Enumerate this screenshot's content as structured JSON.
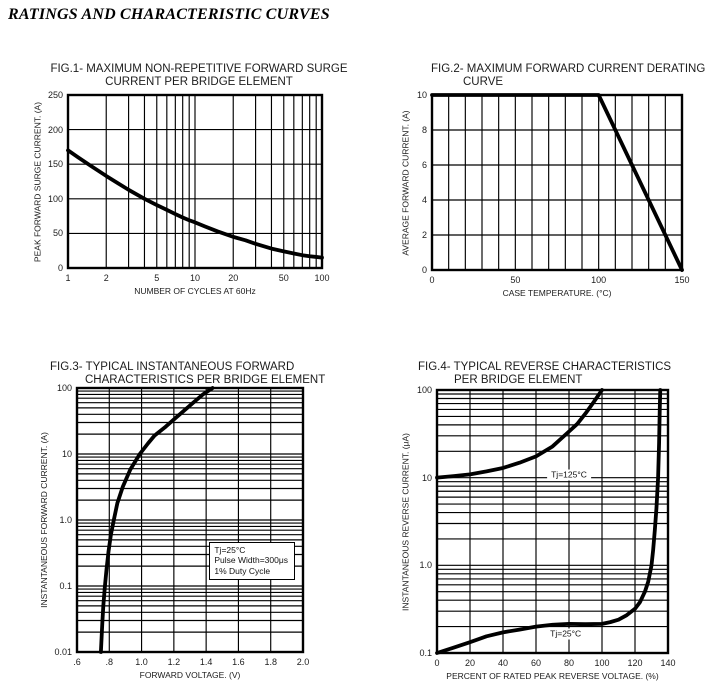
{
  "page": {
    "title": "RATINGS AND CHARACTERISTIC CURVES"
  },
  "chart_data": [
    {
      "fig": "fig1",
      "type": "line",
      "title_lines": [
        "FIG.1- MAXIMUM NON-REPETITIVE FORWARD SURGE",
        "CURRENT PER BRIDGE ELEMENT"
      ],
      "x_axis": {
        "type": "log",
        "min": 1,
        "max": 100,
        "label": "NUMBER OF CYCLES AT 60Hz",
        "ticks": [
          {
            "v": 1,
            "t": "1"
          },
          {
            "v": 2,
            "t": "2"
          },
          {
            "v": 5,
            "t": "5"
          },
          {
            "v": 10,
            "t": "10"
          },
          {
            "v": 20,
            "t": "20"
          },
          {
            "v": 50,
            "t": "50"
          },
          {
            "v": 100,
            "t": "100"
          }
        ]
      },
      "y_axis": {
        "type": "linear",
        "min": 0,
        "max": 250,
        "grid_step": 50,
        "label": "PEAK FORWARD SURGE CURRENT. (A)",
        "ticks": [
          {
            "v": 250,
            "t": "250"
          },
          {
            "v": 200,
            "t": "200"
          },
          {
            "v": 150,
            "t": "150"
          },
          {
            "v": 100,
            "t": "100"
          },
          {
            "v": 50,
            "t": "50"
          },
          {
            "v": 0,
            "t": "0"
          }
        ]
      },
      "series": [
        {
          "name": "surge-current",
          "points": [
            [
              1,
              170
            ],
            [
              1.2,
              160
            ],
            [
              1.5,
              148
            ],
            [
              2,
              133
            ],
            [
              2.5,
              122
            ],
            [
              3,
              113
            ],
            [
              4,
              100
            ],
            [
              5,
              91
            ],
            [
              6,
              84
            ],
            [
              7,
              78
            ],
            [
              8,
              73
            ],
            [
              9,
              69
            ],
            [
              10,
              66
            ],
            [
              12,
              60
            ],
            [
              15,
              53
            ],
            [
              20,
              45
            ],
            [
              25,
              40
            ],
            [
              30,
              35
            ],
            [
              40,
              28
            ],
            [
              50,
              24
            ],
            [
              60,
              21
            ],
            [
              70,
              18.5
            ],
            [
              80,
              17
            ],
            [
              90,
              16
            ],
            [
              100,
              15
            ]
          ]
        }
      ],
      "annotations": []
    },
    {
      "fig": "fig2",
      "type": "line",
      "title_lines": [
        "FIG.2- MAXIMUM FORWARD CURRENT DERATING",
        "CURVE"
      ],
      "x_axis": {
        "type": "linear",
        "min": 0,
        "max": 150,
        "grid_step": 10,
        "label": "CASE TEMPERATURE. (°C)",
        "ticks": [
          {
            "v": 0,
            "t": "0"
          },
          {
            "v": 50,
            "t": "50"
          },
          {
            "v": 100,
            "t": "100"
          },
          {
            "v": 150,
            "t": "150"
          }
        ]
      },
      "y_axis": {
        "type": "linear",
        "min": 0,
        "max": 10,
        "grid_step": 2,
        "label": "AVERAGE FORWARD CURRENT. (A)",
        "ticks": [
          {
            "v": 10,
            "t": "10"
          },
          {
            "v": 8,
            "t": "8"
          },
          {
            "v": 6,
            "t": "6"
          },
          {
            "v": 4,
            "t": "4"
          },
          {
            "v": 2,
            "t": "2"
          },
          {
            "v": 0,
            "t": "0"
          }
        ]
      },
      "series": [
        {
          "name": "derating",
          "points": [
            [
              0,
              10
            ],
            [
              100,
              10
            ],
            [
              150,
              0
            ]
          ]
        }
      ],
      "annotations": []
    },
    {
      "fig": "fig3",
      "type": "line",
      "title_lines": [
        "FIG.3- TYPICAL INSTANTANEOUS FORWARD",
        "CHARACTERISTICS PER BRIDGE ELEMENT"
      ],
      "x_axis": {
        "type": "linear",
        "min": 0.6,
        "max": 2.0,
        "grid_step": 0.2,
        "label": "FORWARD VOLTAGE. (V)",
        "ticks": [
          {
            "v": 0.6,
            "t": ".6"
          },
          {
            "v": 0.8,
            "t": ".8"
          },
          {
            "v": 1.0,
            "t": "1.0"
          },
          {
            "v": 1.2,
            "t": "1.2"
          },
          {
            "v": 1.4,
            "t": "1.4"
          },
          {
            "v": 1.6,
            "t": "1.6"
          },
          {
            "v": 1.8,
            "t": "1.8"
          },
          {
            "v": 2.0,
            "t": "2.0"
          }
        ]
      },
      "y_axis": {
        "type": "log",
        "min": 0.01,
        "max": 100,
        "label": "INSTANTANEOUS FORWARD CURRENT. (A)",
        "ticks": [
          {
            "v": 100,
            "t": "100"
          },
          {
            "v": 10,
            "t": "10"
          },
          {
            "v": 1,
            "t": "1.0"
          },
          {
            "v": 0.1,
            "t": "0.1"
          },
          {
            "v": 0.01,
            "t": "0.01"
          }
        ]
      },
      "series": [
        {
          "name": "forward-characteristic",
          "points": [
            [
              0.748,
              0.01
            ],
            [
              0.752,
              0.016
            ],
            [
              0.757,
              0.028
            ],
            [
              0.763,
              0.05
            ],
            [
              0.773,
              0.1
            ],
            [
              0.783,
              0.18
            ],
            [
              0.795,
              0.33
            ],
            [
              0.81,
              0.6
            ],
            [
              0.828,
              1.0
            ],
            [
              0.85,
              1.8
            ],
            [
              0.884,
              3.2
            ],
            [
              0.93,
              5.8
            ],
            [
              0.989,
              10
            ],
            [
              1.04,
              14.5
            ],
            [
              1.08,
              19
            ],
            [
              1.15,
              26
            ],
            [
              1.21,
              35
            ],
            [
              1.27,
              47
            ],
            [
              1.32,
              60
            ],
            [
              1.38,
              80
            ],
            [
              1.44,
              100
            ]
          ]
        }
      ],
      "annotations": [
        {
          "style": "box",
          "x": 1.42,
          "y": 0.465,
          "lines": [
            "Tj=25°C",
            "Pulse Width=300μs",
            "1% Duty Cycle"
          ]
        }
      ]
    },
    {
      "fig": "fig4",
      "type": "line",
      "title_lines": [
        "FIG.4- TYPICAL REVERSE CHARACTERISTICS",
        "PER BRIDGE ELEMENT"
      ],
      "x_axis": {
        "type": "linear",
        "min": 0,
        "max": 140,
        "grid_step": 20,
        "label": "PERCENT OF RATED PEAK REVERSE VOLTAGE. (%)",
        "ticks": [
          {
            "v": 0,
            "t": "0"
          },
          {
            "v": 20,
            "t": "20"
          },
          {
            "v": 40,
            "t": "40"
          },
          {
            "v": 60,
            "t": "60"
          },
          {
            "v": 80,
            "t": "80"
          },
          {
            "v": 100,
            "t": "100"
          },
          {
            "v": 120,
            "t": "120"
          },
          {
            "v": 140,
            "t": "140"
          }
        ]
      },
      "y_axis": {
        "type": "log",
        "min": 0.1,
        "max": 100,
        "label": "INSTANTANEOUS REVERSE CURRENT. (μA)",
        "ticks": [
          {
            "v": 100,
            "t": "100"
          },
          {
            "v": 10,
            "t": "10"
          },
          {
            "v": 1,
            "t": "1.0"
          },
          {
            "v": 0.1,
            "t": "0.1"
          }
        ]
      },
      "series": [
        {
          "name": "tj-125c",
          "points": [
            [
              0,
              10
            ],
            [
              10,
              10.4
            ],
            [
              20,
              10.9
            ],
            [
              30,
              11.8
            ],
            [
              40,
              12.9
            ],
            [
              50,
              14.8
            ],
            [
              60,
              17.5
            ],
            [
              70,
              22.7
            ],
            [
              80,
              33.6
            ],
            [
              85,
              41
            ],
            [
              90,
              54
            ],
            [
              95,
              73
            ],
            [
              100,
              100
            ]
          ]
        },
        {
          "name": "tj-25c",
          "points": [
            [
              0,
              0.1
            ],
            [
              10,
              0.115
            ],
            [
              20,
              0.133
            ],
            [
              30,
              0.155
            ],
            [
              40,
              0.172
            ],
            [
              50,
              0.185
            ],
            [
              60,
              0.2
            ],
            [
              70,
              0.21
            ],
            [
              80,
              0.215
            ],
            [
              90,
              0.213
            ],
            [
              100,
              0.215
            ],
            [
              105,
              0.225
            ],
            [
              110,
              0.24
            ],
            [
              115,
              0.27
            ],
            [
              120,
              0.32
            ],
            [
              123,
              0.38
            ],
            [
              126,
              0.5
            ],
            [
              128,
              0.65
            ],
            [
              130,
              1.0
            ],
            [
              131,
              1.5
            ],
            [
              132,
              2.5
            ],
            [
              133,
              4.5
            ],
            [
              134,
              10
            ],
            [
              134.6,
              25
            ],
            [
              135,
              60
            ],
            [
              135.3,
              100
            ]
          ]
        }
      ],
      "annotations": [
        {
          "style": "label",
          "x": 80,
          "y": 10.8,
          "text": "Tj=125°C"
        },
        {
          "style": "label",
          "x": 78,
          "y": 0.163,
          "text": "Tj=25°C"
        }
      ]
    }
  ]
}
